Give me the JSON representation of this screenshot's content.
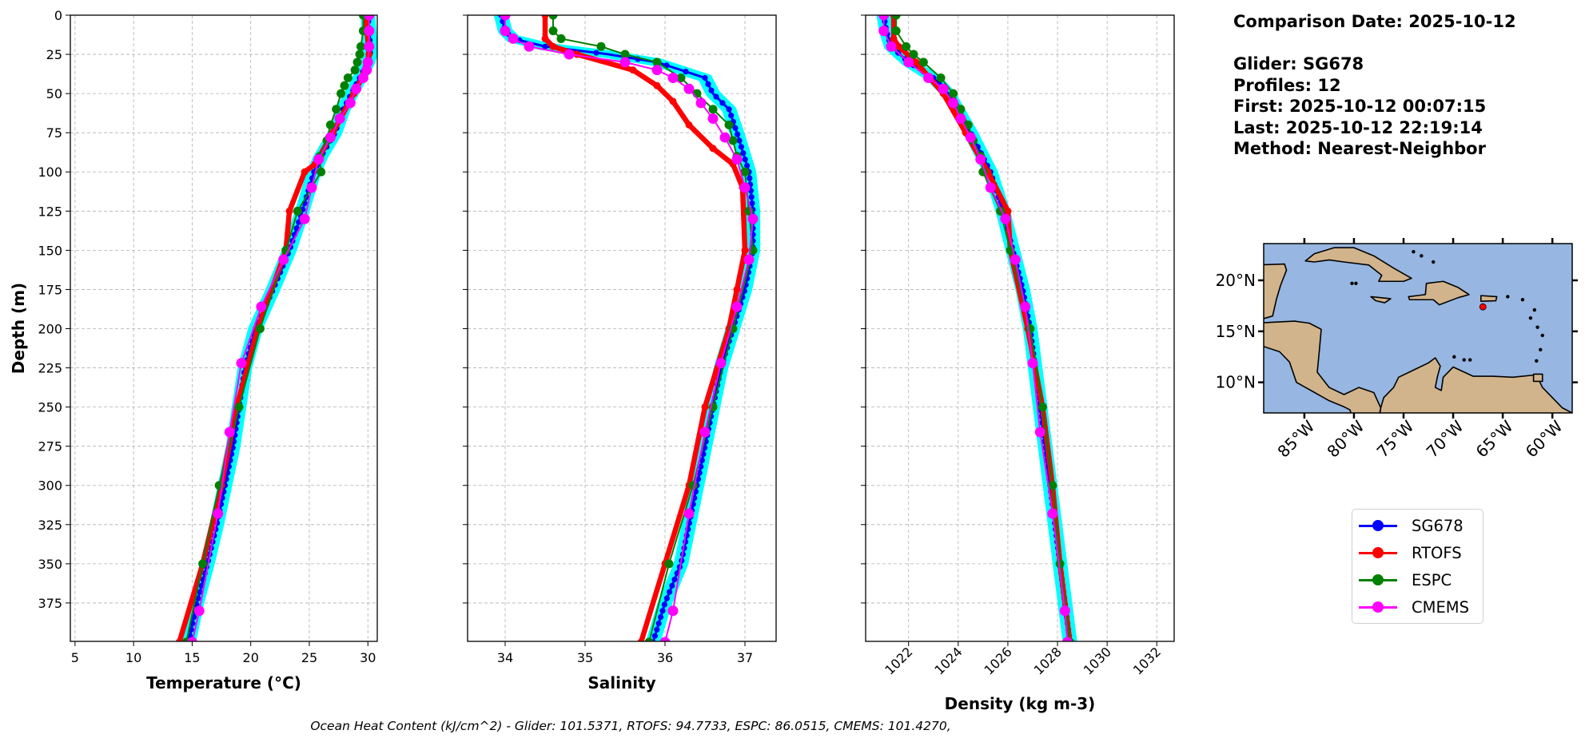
{
  "info": {
    "comparison_date": "Comparison Date: 2025-10-12",
    "glider": "Glider: SG678",
    "profiles": "Profiles: 12",
    "first": "First: 2025-10-12 00:07:15",
    "last": "Last: 2025-10-12 22:19:14",
    "method": "Method: Nearest-Neighbor"
  },
  "ohc_text": "Ocean Heat Content (kJ/cm^2) - Glider: 101.5371,  RTOFS: 94.7733,  ESPC: 86.0515,  CMEMS: 101.4270,",
  "legend": [
    {
      "name": "SG678",
      "color": "#0000ff"
    },
    {
      "name": "RTOFS",
      "color": "#ff0000"
    },
    {
      "name": "ESPC",
      "color": "#008000"
    },
    {
      "name": "CMEMS",
      "color": "#ff00ff"
    }
  ],
  "individual_profiles_color": "#00ffff",
  "chart_data": [
    {
      "type": "line",
      "xlabel": "Temperature (°C)",
      "ylabel": "Depth (m)",
      "xlim": [
        4.6,
        30.8
      ],
      "ylim": [
        399.5,
        0
      ],
      "xticks": [
        5,
        10,
        15,
        20,
        25,
        30
      ],
      "yticks": [
        0,
        25,
        50,
        75,
        100,
        125,
        150,
        175,
        200,
        225,
        250,
        275,
        300,
        325,
        350,
        375
      ],
      "grid": true,
      "series": [
        {
          "name": "SG678",
          "depth": [
            0,
            10,
            20,
            25,
            30,
            40,
            50,
            60,
            75,
            90,
            100,
            125,
            150,
            175,
            200,
            225,
            250,
            275,
            300,
            325,
            350,
            375,
            400
          ],
          "values": [
            30.0,
            30.1,
            30.2,
            30.2,
            30.0,
            29.3,
            28.6,
            27.9,
            27.2,
            26.0,
            25.4,
            24.4,
            23.3,
            21.9,
            20.4,
            19.5,
            19.0,
            18.5,
            17.8,
            17.1,
            16.3,
            15.4,
            14.7
          ]
        },
        {
          "name": "RTOFS",
          "depth": [
            0,
            25,
            40,
            50,
            75,
            95,
            100,
            125,
            150,
            200,
            250,
            300,
            350,
            400
          ],
          "values": [
            29.8,
            30.1,
            29.5,
            28.8,
            27.0,
            25.5,
            24.6,
            23.3,
            23.0,
            20.6,
            18.8,
            17.5,
            15.9,
            13.9
          ]
        },
        {
          "name": "ESPC",
          "depth": [
            0,
            10,
            20,
            25,
            30,
            35,
            40,
            45,
            50,
            60,
            70,
            80,
            90,
            100,
            125,
            150,
            200,
            250,
            300,
            350,
            400
          ],
          "values": [
            29.6,
            29.6,
            29.4,
            29.3,
            29.1,
            28.9,
            28.3,
            28.0,
            27.7,
            27.3,
            26.8,
            26.5,
            25.9,
            26.0,
            24.0,
            23.0,
            20.8,
            19.0,
            17.3,
            15.9,
            14.5
          ]
        },
        {
          "name": "CMEMS",
          "depth": [
            0,
            10,
            20,
            30,
            35,
            40,
            47,
            56,
            66,
            78,
            92,
            110,
            130,
            156,
            186,
            222,
            266,
            318,
            380,
            400
          ],
          "values": [
            30.1,
            30.1,
            30.1,
            30.0,
            29.9,
            29.6,
            29.0,
            28.5,
            27.6,
            26.8,
            25.8,
            25.2,
            24.6,
            22.8,
            20.9,
            19.2,
            18.2,
            17.2,
            15.6,
            15.0
          ]
        }
      ]
    },
    {
      "type": "line",
      "xlabel": "Salinity",
      "xlim": [
        33.53,
        37.39
      ],
      "ylim": [
        399.5,
        0
      ],
      "xticks": [
        34,
        35,
        36,
        37
      ],
      "yticks": [
        0,
        25,
        50,
        75,
        100,
        125,
        150,
        175,
        200,
        225,
        250,
        275,
        300,
        325,
        350,
        375
      ],
      "grid": true,
      "series": [
        {
          "name": "SG678",
          "depth": [
            0,
            10,
            15,
            20,
            25,
            30,
            40,
            50,
            60,
            75,
            100,
            125,
            150,
            175,
            200,
            225,
            250,
            275,
            300,
            325,
            350,
            375,
            400
          ],
          "values": [
            33.95,
            34.0,
            34.1,
            34.5,
            35.3,
            35.9,
            36.5,
            36.6,
            36.8,
            36.9,
            37.05,
            37.1,
            37.1,
            37.0,
            36.85,
            36.7,
            36.6,
            36.5,
            36.4,
            36.3,
            36.2,
            36.0,
            35.85
          ]
        },
        {
          "name": "RTOFS",
          "depth": [
            0,
            15,
            20,
            25,
            35,
            45,
            55,
            70,
            85,
            95,
            110,
            150,
            175,
            200,
            250,
            300,
            350,
            400
          ],
          "values": [
            34.5,
            34.5,
            34.6,
            34.9,
            35.6,
            35.9,
            36.1,
            36.3,
            36.6,
            36.85,
            36.97,
            37.0,
            36.9,
            36.8,
            36.5,
            36.3,
            36.0,
            35.7
          ]
        },
        {
          "name": "ESPC",
          "depth": [
            0,
            10,
            15,
            20,
            25,
            30,
            40,
            50,
            60,
            70,
            80,
            90,
            100,
            125,
            150,
            200,
            250,
            300,
            350,
            400
          ],
          "values": [
            34.6,
            34.6,
            34.7,
            35.2,
            35.5,
            35.9,
            36.2,
            36.4,
            36.6,
            36.8,
            36.85,
            36.9,
            37.0,
            37.05,
            37.1,
            36.85,
            36.6,
            36.35,
            36.05,
            35.8
          ]
        },
        {
          "name": "CMEMS",
          "depth": [
            0,
            10,
            15,
            20,
            25,
            30,
            35,
            40,
            47,
            56,
            66,
            78,
            92,
            110,
            130,
            156,
            186,
            222,
            266,
            318,
            380,
            400
          ],
          "values": [
            34.0,
            34.0,
            34.1,
            34.3,
            34.8,
            35.5,
            35.9,
            36.1,
            36.3,
            36.45,
            36.6,
            36.75,
            36.9,
            37.0,
            37.1,
            37.05,
            36.9,
            36.7,
            36.5,
            36.3,
            36.1,
            36.0
          ]
        }
      ]
    },
    {
      "type": "line",
      "xlabel": "Density (kg m-3)",
      "xlim": [
        1020.27,
        1032.7
      ],
      "ylim": [
        399.5,
        0
      ],
      "xticks": [
        1022,
        1024,
        1026,
        1028,
        1030,
        1032
      ],
      "yticks": [
        0,
        25,
        50,
        75,
        100,
        125,
        150,
        175,
        200,
        225,
        250,
        275,
        300,
        325,
        350,
        375
      ],
      "grid": true,
      "series": [
        {
          "name": "SG678",
          "depth": [
            0,
            10,
            20,
            30,
            40,
            50,
            75,
            100,
            125,
            150,
            175,
            200,
            225,
            250,
            275,
            300,
            350,
            400
          ],
          "values": [
            1021.0,
            1021.1,
            1021.3,
            1022.0,
            1023.0,
            1023.6,
            1024.5,
            1025.3,
            1025.8,
            1026.2,
            1026.6,
            1026.9,
            1027.1,
            1027.3,
            1027.5,
            1027.7,
            1028.1,
            1028.5
          ]
        },
        {
          "name": "RTOFS",
          "depth": [
            0,
            15,
            20,
            30,
            50,
            75,
            100,
            125,
            150,
            200,
            250,
            300,
            350,
            400
          ],
          "values": [
            1021.4,
            1021.4,
            1021.6,
            1022.3,
            1023.4,
            1024.3,
            1025.2,
            1026.0,
            1026.1,
            1026.8,
            1027.4,
            1027.8,
            1028.1,
            1028.5
          ]
        },
        {
          "name": "ESPC",
          "depth": [
            0,
            10,
            20,
            25,
            30,
            40,
            50,
            60,
            70,
            80,
            90,
            100,
            125,
            150,
            200,
            250,
            300,
            350,
            400
          ],
          "values": [
            1021.5,
            1021.5,
            1021.9,
            1022.2,
            1022.6,
            1023.3,
            1023.8,
            1024.1,
            1024.4,
            1024.6,
            1024.9,
            1025.0,
            1025.7,
            1026.1,
            1026.9,
            1027.4,
            1027.8,
            1028.1,
            1028.5
          ]
        },
        {
          "name": "CMEMS",
          "depth": [
            0,
            10,
            20,
            30,
            40,
            47,
            56,
            66,
            78,
            92,
            110,
            130,
            156,
            186,
            222,
            266,
            318,
            380,
            400
          ],
          "values": [
            1021.0,
            1021.0,
            1021.3,
            1022.0,
            1022.8,
            1023.4,
            1023.8,
            1024.1,
            1024.5,
            1024.9,
            1025.3,
            1025.9,
            1026.3,
            1026.7,
            1027.0,
            1027.3,
            1027.8,
            1028.3,
            1028.4
          ]
        }
      ]
    }
  ],
  "map": {
    "lon_range": [
      -89.1,
      -58.0
    ],
    "lat_range": [
      7.0,
      23.6
    ],
    "lon_ticks": [
      -85,
      -80,
      -75,
      -70,
      -65,
      -60
    ],
    "lon_labels": [
      "85°W",
      "80°W",
      "75°W",
      "70°W",
      "65°W",
      "60°W"
    ],
    "lat_ticks": [
      10,
      15,
      20
    ],
    "lat_labels": [
      "10°N",
      "15°N",
      "20°N"
    ],
    "ocean_color": "#97b6e1",
    "land_color": "#d2b48c",
    "glider_location": {
      "lon": -67.0,
      "lat": 17.4,
      "color": "#ff0000"
    }
  }
}
